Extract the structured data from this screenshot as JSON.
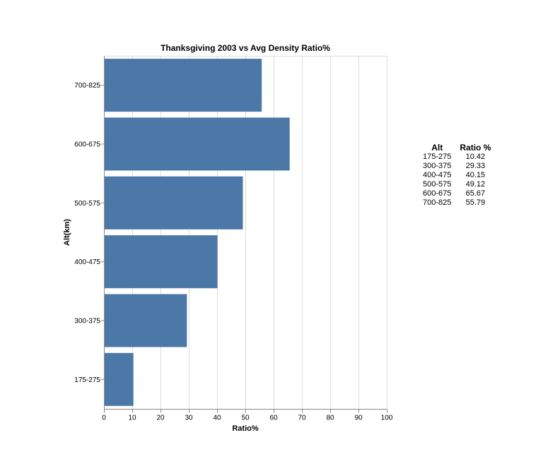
{
  "chart_data": {
    "type": "bar",
    "orientation": "horizontal",
    "title": "Thanksgiving 2003 vs Avg Density Ratio%",
    "xlabel": "Ratio%",
    "ylabel": "Alt(km)",
    "categories": [
      "700-825",
      "600-675",
      "500-575",
      "400-475",
      "300-375",
      "175-275"
    ],
    "values": [
      55.79,
      65.67,
      49.12,
      40.15,
      29.33,
      10.42
    ],
    "xlim": [
      0,
      100
    ],
    "xticks": [
      0,
      10,
      20,
      30,
      40,
      50,
      60,
      70,
      80,
      90,
      100
    ],
    "grid": true,
    "bar_color": "#4c78a8"
  },
  "table": {
    "headers": [
      "Alt",
      "Ratio %"
    ],
    "rows": [
      [
        "175-275",
        "10.42"
      ],
      [
        "300-375",
        "29.33"
      ],
      [
        "400-475",
        "40.15"
      ],
      [
        "500-575",
        "49.12"
      ],
      [
        "600-675",
        "65.67"
      ],
      [
        "700-825",
        "55.79"
      ]
    ]
  }
}
